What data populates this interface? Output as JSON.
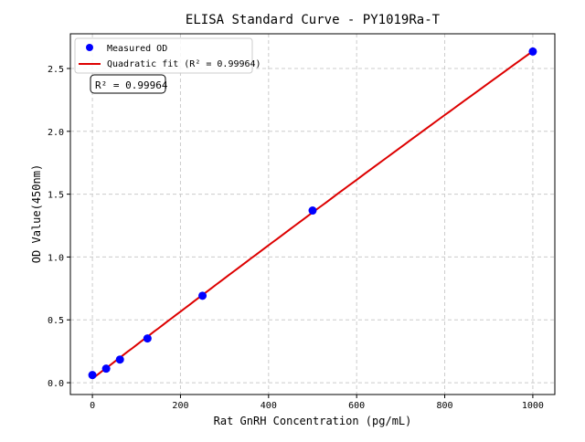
{
  "chart_data": {
    "type": "scatter",
    "title": "ELISA Standard Curve - PY1019Ra-T",
    "xlabel": "Rat GnRH Concentration (pg/mL)",
    "ylabel": "OD Value(450nm)",
    "xlim": [
      -50,
      1050
    ],
    "ylim": [
      -0.094,
      2.776
    ],
    "xticks": [
      0,
      200,
      400,
      600,
      800,
      1000
    ],
    "xtick_labels": [
      "0",
      "200",
      "400",
      "600",
      "800",
      "1000"
    ],
    "yticks": [
      0,
      0.5,
      1,
      1.5,
      2,
      2.5
    ],
    "ytick_labels": [
      "0.0",
      "0.5",
      "1.0",
      "1.5",
      "2.0",
      "2.5"
    ],
    "grid": true,
    "legend_position": "top-left",
    "series": [
      {
        "name": "Measured OD",
        "kind": "scatter",
        "color": "#0000ff",
        "x": [
          0,
          31.25,
          62.5,
          125,
          250,
          500,
          1000
        ],
        "y": [
          0.061,
          0.112,
          0.184,
          0.352,
          0.692,
          1.37,
          2.635
        ]
      },
      {
        "name": "Quadratic fit (R² = 0.99964)",
        "kind": "line",
        "color": "#dd0000",
        "fit": "quadratic"
      }
    ],
    "annotation": "R² = 0.99964"
  }
}
